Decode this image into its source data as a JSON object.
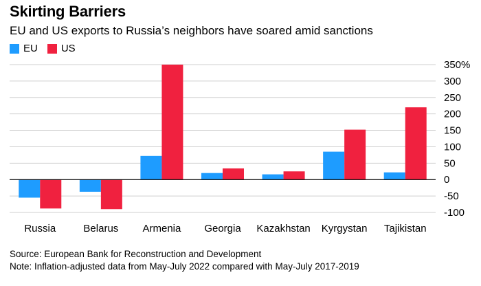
{
  "colors": {
    "eu": "#1e9cff",
    "us": "#f0213f",
    "grid": "#cfcfcf",
    "zero_line": "#000000"
  },
  "legend": {
    "eu_label": "EU",
    "us_label": "US"
  },
  "source": "Source: European Bank for Reconstruction and Development",
  "note": "Note: Inflation-adjusted data from May-July 2022 compared with May-July 2017-2019",
  "chart_data": {
    "type": "bar",
    "title": "Skirting Barriers",
    "subtitle": "EU and US exports to Russia’s neighbors have soared amid sanctions",
    "xlabel": "",
    "ylabel": "",
    "categories": [
      "Russia",
      "Belarus",
      "Armenia",
      "Georgia",
      "Kazakhstan",
      "Kyrgystan",
      "Tajikistan"
    ],
    "series": [
      {
        "name": "EU",
        "values": [
          -55,
          -37,
          72,
          20,
          16,
          85,
          22
        ]
      },
      {
        "name": "US",
        "values": [
          -88,
          -90,
          350,
          34,
          25,
          152,
          220
        ]
      }
    ],
    "ylim": [
      -100,
      350
    ],
    "yticks": [
      -100,
      -50,
      0,
      50,
      100,
      150,
      200,
      250,
      300,
      350
    ],
    "ytick_labels": [
      "-100",
      "-50",
      "0",
      "50",
      "100",
      "150",
      "200",
      "250",
      "300",
      "350%"
    ],
    "grid": true,
    "legend_position": "top-left",
    "y_axis_side": "right"
  }
}
